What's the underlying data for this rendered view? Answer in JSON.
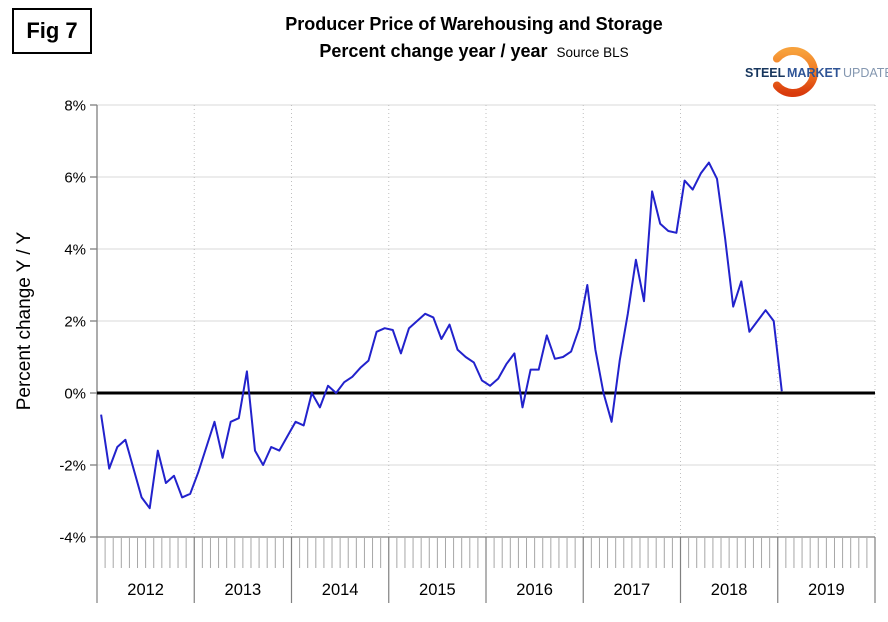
{
  "figure_label": "Fig 7",
  "header": {
    "title": "Producer Price of Warehousing and Storage",
    "subtitle": "Percent change year / year",
    "source": "Source BLS"
  },
  "logo": {
    "steel": "STEEL",
    "market": "MARKET",
    "update": "UPDATE",
    "steel_color": "#17365D",
    "market_color": "#2F5496",
    "update_color": "#8497B0",
    "crescent_top_color": "#F7A13C",
    "crescent_mid_color": "#F07822",
    "crescent_bottom_color": "#D93A0C"
  },
  "chart_data": {
    "type": "line",
    "title": "Producer Price of Warehousing and Storage",
    "subtitle": "Percent change year / year",
    "source": "Source BLS",
    "ylabel": "Percent change Y / Y",
    "ylim": [
      -4,
      8
    ],
    "ytick_step": 2,
    "ytick_values": [
      8,
      6,
      4,
      2,
      0,
      -2,
      -4
    ],
    "ytick_labels": [
      "8%",
      "6%",
      "4%",
      "2%",
      "0%",
      "-2%",
      "-4%"
    ],
    "x_unit": "month",
    "x_range": "Jan 2012 - Jan 2019",
    "year_labels": [
      "2012",
      "2013",
      "2014",
      "2015",
      "2016",
      "2017",
      "2018",
      "2019"
    ],
    "grid": {
      "horizontal": true,
      "vertical_year_dotted": true,
      "minor_month_ticks": true
    },
    "legend": "none",
    "zero_line": {
      "show": true,
      "color": "#000000",
      "width": 3
    },
    "colors": {
      "gridline": "#D9D9D9",
      "year_gridline": "#BFBFBF",
      "axis": "#808080",
      "minor_tick": "#A6A6A6",
      "label": "#000000"
    },
    "series": [
      {
        "name": "PPI Warehousing and Storage, percent change year/year",
        "color": "#2222CC",
        "start": "2012-01",
        "values": [
          -0.6,
          -2.1,
          -1.5,
          -1.3,
          -2.1,
          -2.9,
          -3.2,
          -1.6,
          -2.5,
          -2.3,
          -2.9,
          -2.8,
          -2.2,
          -1.5,
          -0.8,
          -1.8,
          -0.8,
          -0.7,
          0.6,
          -1.6,
          -2.0,
          -1.5,
          -1.6,
          -1.2,
          -0.8,
          -0.9,
          0.0,
          -0.4,
          0.2,
          0.0,
          0.3,
          0.45,
          0.7,
          0.9,
          1.7,
          1.8,
          1.75,
          1.1,
          1.8,
          2.0,
          2.2,
          2.1,
          1.5,
          1.9,
          1.2,
          1.0,
          0.85,
          0.35,
          0.2,
          0.4,
          0.8,
          1.1,
          -0.4,
          0.65,
          0.65,
          1.6,
          0.95,
          1.0,
          1.15,
          1.8,
          3.0,
          1.2,
          0.0,
          -0.8,
          0.9,
          2.2,
          3.7,
          2.55,
          5.6,
          4.7,
          4.5,
          4.45,
          5.9,
          5.65,
          6.1,
          6.4,
          5.95,
          4.3,
          2.4,
          3.1,
          1.7,
          2.0,
          2.3,
          2.0,
          0.05
        ]
      }
    ]
  }
}
